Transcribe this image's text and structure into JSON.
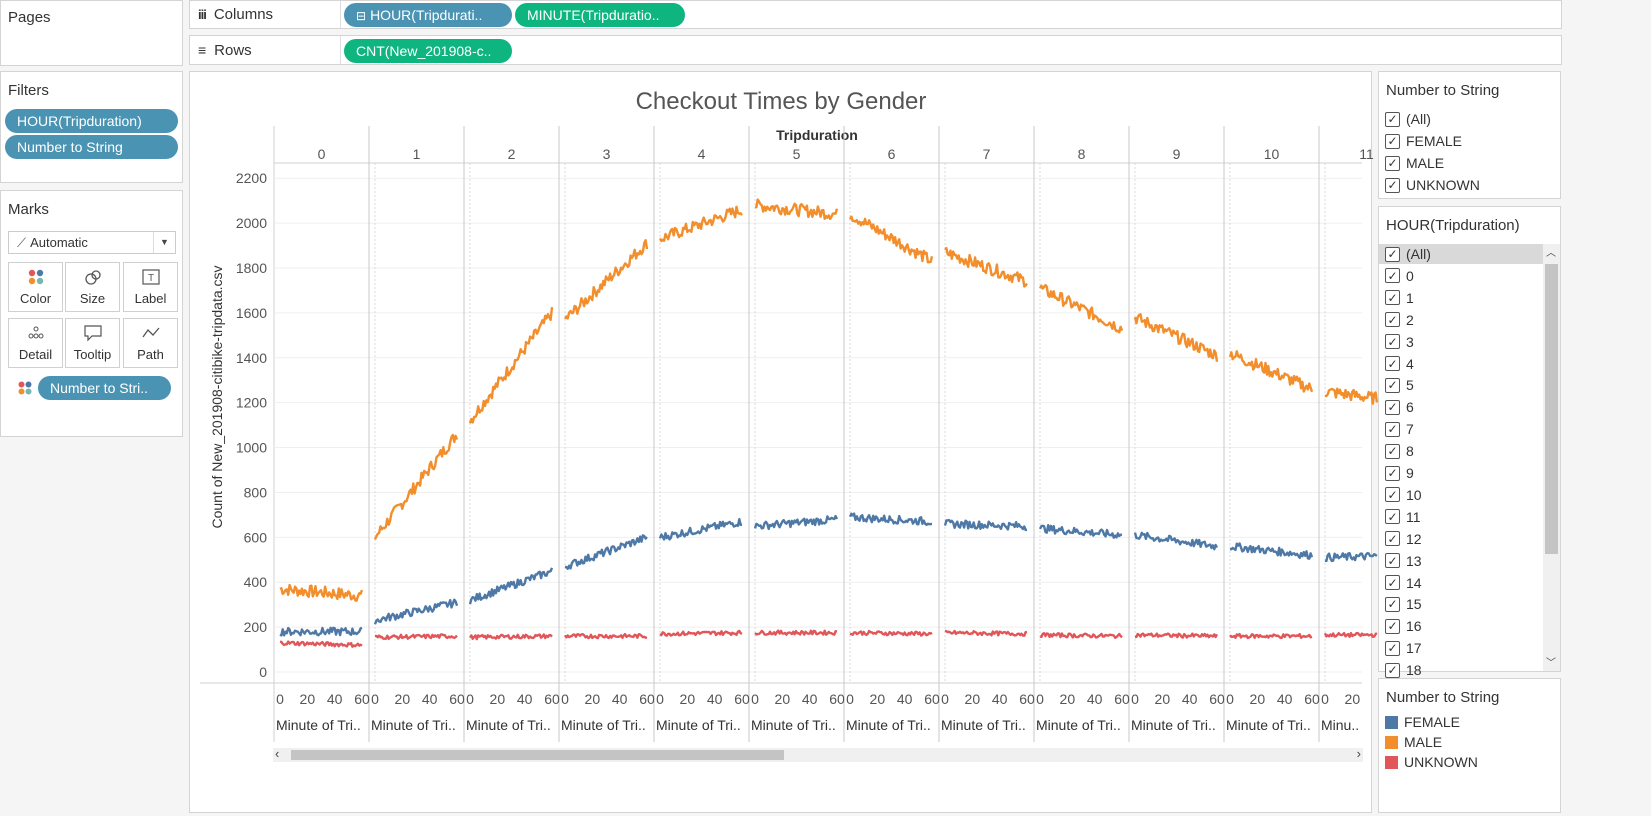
{
  "pages": {
    "title": "Pages"
  },
  "shelves": {
    "columns": {
      "label": "Columns",
      "pills": [
        "HOUR(Tripdurati..",
        "MINUTE(Tripduratio.."
      ]
    },
    "rows": {
      "label": "Rows",
      "pills": [
        "CNT(New_201908-c.."
      ]
    }
  },
  "filters": {
    "title": "Filters",
    "pills": [
      "HOUR(Tripduration)",
      "Number to String"
    ]
  },
  "marks": {
    "title": "Marks",
    "type": "Automatic",
    "buttons": [
      "Color",
      "Size",
      "Label",
      "Detail",
      "Tooltip",
      "Path"
    ],
    "color_pill": "Number to Stri.."
  },
  "filter_gender": {
    "title": "Number to String",
    "items": [
      "(All)",
      "FEMALE",
      "MALE",
      "UNKNOWN"
    ]
  },
  "filter_hour": {
    "title": "HOUR(Tripduration)",
    "items": [
      "(All)",
      "0",
      "1",
      "2",
      "3",
      "4",
      "5",
      "6",
      "7",
      "8",
      "9",
      "10",
      "11",
      "12",
      "13",
      "14",
      "15",
      "16",
      "17",
      "18"
    ]
  },
  "legend": {
    "title": "Number to String",
    "items": [
      {
        "label": "FEMALE",
        "color": "#4e79a7"
      },
      {
        "label": "MALE",
        "color": "#f28e2b"
      },
      {
        "label": "UNKNOWN",
        "color": "#e15759"
      }
    ]
  },
  "chart_data": {
    "type": "line",
    "title": "Checkout Times by Gender",
    "column_header": "Tripduration",
    "ylabel": "Count of New_201908-citibike-tripdata.csv",
    "xlabel_truncated": "Minute of Tri..",
    "xlabel_last_truncated": "Minu..",
    "ylim": [
      0,
      2250
    ],
    "yticks": [
      0,
      200,
      400,
      600,
      800,
      1000,
      1200,
      1400,
      1600,
      1800,
      2000,
      2200
    ],
    "xticks": [
      0,
      20,
      40,
      60
    ],
    "hours": [
      "0",
      "1",
      "2",
      "3",
      "4",
      "5",
      "6",
      "7",
      "8",
      "9",
      "10",
      "11"
    ],
    "series": [
      {
        "name": "MALE",
        "color": "#f28e2b",
        "start": [
          370,
          600,
          1120,
          1570,
          1930,
          2080,
          2040,
          1870,
          1710,
          1580,
          1420,
          1250
        ],
        "end": [
          340,
          1060,
          1600,
          1910,
          2060,
          2040,
          1830,
          1740,
          1530,
          1410,
          1260,
          1200
        ]
      },
      {
        "name": "FEMALE",
        "color": "#4e79a7",
        "start": [
          180,
          230,
          320,
          470,
          600,
          650,
          690,
          660,
          640,
          610,
          560,
          510
        ],
        "end": [
          180,
          310,
          450,
          600,
          670,
          680,
          670,
          650,
          610,
          560,
          520,
          520
        ]
      },
      {
        "name": "UNKNOWN",
        "color": "#e15759",
        "start": [
          130,
          155,
          155,
          160,
          170,
          175,
          175,
          175,
          165,
          165,
          160,
          165
        ],
        "end": [
          120,
          160,
          160,
          160,
          175,
          175,
          170,
          170,
          160,
          160,
          160,
          165
        ]
      }
    ]
  }
}
